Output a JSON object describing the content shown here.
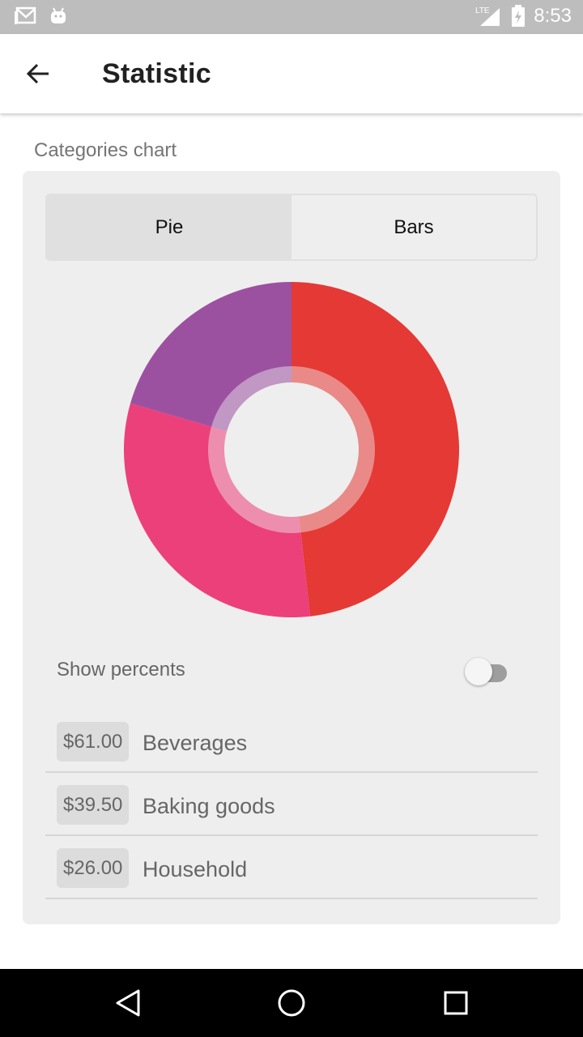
{
  "status_bar": {
    "time": "8:53",
    "network": "LTE",
    "icons": [
      "gmail-icon",
      "android-icon",
      "lte-signal-icon",
      "battery-charging-icon"
    ]
  },
  "app_bar": {
    "title": "Statistic",
    "back_icon": "arrow-back-icon"
  },
  "section": {
    "label": "Categories chart"
  },
  "chart_tabs": [
    {
      "label": "Pie",
      "active": true
    },
    {
      "label": "Bars",
      "active": false
    }
  ],
  "toggle": {
    "label": "Show percents",
    "on": false
  },
  "categories": [
    {
      "price": "$61.00",
      "name": "Beverages",
      "color": "#e53935"
    },
    {
      "price": "$39.50",
      "name": "Baking goods",
      "color": "#ec407a"
    },
    {
      "price": "$26.00",
      "name": "Household",
      "color": "#9c51a0"
    }
  ],
  "chart_data": {
    "type": "pie",
    "style": "donut",
    "categories": [
      "Beverages",
      "Baking goods",
      "Household"
    ],
    "values": [
      61.0,
      39.5,
      26.0
    ],
    "colors": [
      "#e53935",
      "#ec407a",
      "#9c51a0"
    ],
    "title": ""
  },
  "nav_bar": {
    "icons": [
      "nav-back-icon",
      "nav-home-icon",
      "nav-recents-icon"
    ]
  }
}
